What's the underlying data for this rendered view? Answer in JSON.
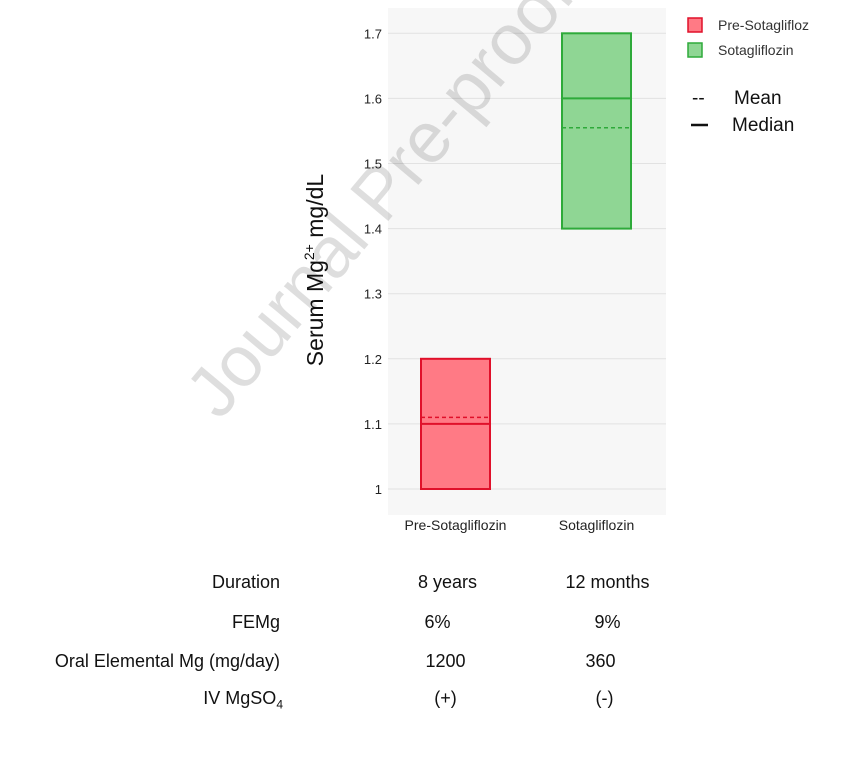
{
  "chart_data": {
    "type": "bar",
    "subtype": "floating box (min–max range with mean and median lines)",
    "categories": [
      "Pre-Sotagliflozin",
      "Sotagliflozin"
    ],
    "series": [
      {
        "name": "Pre-Sotagliflozin",
        "category": "Pre-Sotagliflozin",
        "low": 1.0,
        "high": 1.2,
        "mean": 1.11,
        "median": 1.1,
        "color": "#ff7a85",
        "stroke": "#e0102a"
      },
      {
        "name": "Sotagliflozin",
        "category": "Sotagliflozin",
        "low": 1.4,
        "high": 1.7,
        "mean": 1.555,
        "median": 1.6,
        "color": "#8fd694",
        "stroke": "#2eaa3a"
      }
    ],
    "ylabel_main": "Serum Mg",
    "ylabel_sup": "2+",
    "ylabel_unit": " mg/dL",
    "xlabel": "",
    "ylim": [
      0.96,
      1.74
    ],
    "yticks": [
      1,
      1.1,
      1.2,
      1.3,
      1.4,
      1.5,
      1.6,
      1.7
    ],
    "ytick_labels": [
      "1",
      "1.1",
      "1.2",
      "1.3",
      "1.4",
      "1.5",
      "1.6",
      "1.7"
    ],
    "grid": true,
    "legend": {
      "placement": "top-right",
      "entries": [
        "Pre-Sotaglifloz",
        "Sotagliflozin"
      ],
      "line_key": [
        {
          "symbol": "--",
          "label": "Mean"
        },
        {
          "symbol": "—",
          "label": "Median"
        }
      ]
    }
  },
  "table": {
    "rows": [
      {
        "label": "Duration",
        "pre": "8 years",
        "post": "12 months"
      },
      {
        "label": "FEMg",
        "pre": "6%",
        "post": "9%"
      },
      {
        "label": "Oral Elemental  Mg (mg/day)",
        "pre": "1200",
        "post": "360"
      },
      {
        "label_main": "IV MgSO",
        "label_sub": "4",
        "pre": "(+)",
        "post": "(-)"
      }
    ]
  },
  "watermark": "Journal Pre-proof"
}
